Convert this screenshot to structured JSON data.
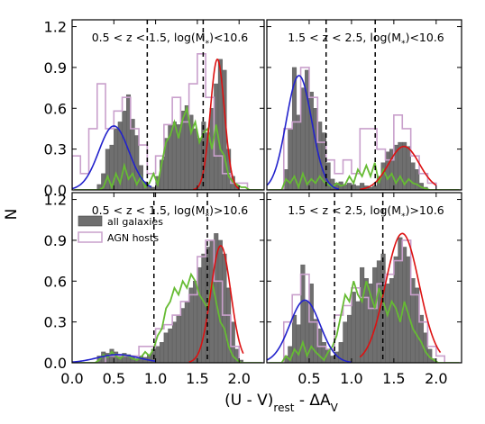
{
  "chart_data": {
    "type": "bar",
    "xlabel_main": "(U - V)",
    "xlabel_sub": "rest",
    "xlabel_tail": " - ΔA",
    "xlabel_tail_sub": "V",
    "ylabel": "N",
    "xlim": [
      0.0,
      2.3
    ],
    "ylim": [
      0.0,
      1.25
    ],
    "xticks": [
      "0.0",
      "0.5",
      "1.0",
      "1.5",
      "2.0"
    ],
    "yticks": [
      "0.0",
      "0.3",
      "0.6",
      "0.9",
      "1.2"
    ],
    "legend": {
      "placement": "upper-left of bottom-left panel",
      "entries": [
        "all galaxies",
        "AGN hosts"
      ]
    },
    "colors": {
      "hist_fill": "#6f6f6f",
      "agn": "#c9a0cc",
      "green": "#66bb33",
      "blue_fit": "#2222cc",
      "red_fit": "#dd1111"
    },
    "bin_start": 0.0,
    "bin_width": 0.05,
    "panels": [
      {
        "title": "0.5 < z < 1.5, log(M",
        "title_sub": "*",
        "title_tail": ")<10.6",
        "cuts": [
          0.9,
          1.57
        ],
        "all_galaxies": [
          0,
          0,
          0,
          0,
          0,
          0,
          0.04,
          0.12,
          0.3,
          0.33,
          0.45,
          0.5,
          0.58,
          0.7,
          0.52,
          0.4,
          0.18,
          0.06,
          0.03,
          0.02,
          0.1,
          0.22,
          0.38,
          0.48,
          0.5,
          0.48,
          0.58,
          0.62,
          0.55,
          0.45,
          0.38,
          0.5,
          0.42,
          0.6,
          0.78,
          0.96,
          0.88,
          0.3,
          0.1,
          0.03,
          0,
          0,
          0,
          0,
          0,
          0
        ],
        "agn_hosts": [
          0.25,
          0.25,
          0.12,
          0.12,
          0.45,
          0.45,
          0.78,
          0.78,
          0.45,
          0.45,
          0.58,
          0.58,
          0.68,
          0.68,
          0.45,
          0.45,
          0.33,
          0.33,
          0.12,
          0.12,
          0.25,
          0.25,
          0.48,
          0.48,
          0.68,
          0.68,
          0.5,
          0.5,
          0.78,
          0.78,
          1.0,
          1.0,
          0.68,
          0.68,
          0.25,
          0.25,
          0.12,
          0.12,
          0.05,
          0.05,
          0.05,
          0.05,
          0,
          0,
          0,
          0
        ],
        "green_line": [
          0,
          0,
          0,
          0,
          0,
          0,
          0,
          0.02,
          0.1,
          0.02,
          0.12,
          0.05,
          0.18,
          0.08,
          0.12,
          0.04,
          0.1,
          0.02,
          0.05,
          0.12,
          0.04,
          0.2,
          0.35,
          0.4,
          0.5,
          0.38,
          0.52,
          0.6,
          0.42,
          0.5,
          0.35,
          0.42,
          0.45,
          0.3,
          0.48,
          0.3,
          0.25,
          0.1,
          0.06,
          0.04,
          0.02,
          0.02,
          0,
          0,
          0,
          0
        ],
        "blue_fit": {
          "mu": 0.5,
          "sigma": 0.18,
          "amp": 0.47,
          "range": [
            0.0,
            0.95
          ]
        },
        "red_fit": {
          "mu": 1.74,
          "sigma": 0.085,
          "amp": 0.96,
          "range": [
            1.45,
            2.0
          ]
        }
      },
      {
        "title": "1.5 < z < 2.5, log(M",
        "title_sub": "*",
        "title_tail": ")<10.6",
        "cuts": [
          0.7,
          1.28
        ],
        "all_galaxies": [
          0,
          0,
          0,
          0,
          0.15,
          0.45,
          0.9,
          0.55,
          0.75,
          0.88,
          0.72,
          0.6,
          0.5,
          0.42,
          0.2,
          0.08,
          0.05,
          0.06,
          0.04,
          0.05,
          0.04,
          0.03,
          0.05,
          0.03,
          0.02,
          0.03,
          0.1,
          0.2,
          0.28,
          0.3,
          0.33,
          0.35,
          0.35,
          0.32,
          0.2,
          0.15,
          0.05,
          0.02,
          0,
          0,
          0,
          0,
          0,
          0,
          0,
          0
        ],
        "agn_hosts": [
          0,
          0,
          0,
          0,
          0.45,
          0.45,
          0.5,
          0.5,
          0.9,
          0.9,
          0.68,
          0.68,
          0.35,
          0.35,
          0.22,
          0.22,
          0.12,
          0.12,
          0.22,
          0.22,
          0.12,
          0.12,
          0.45,
          0.45,
          0.45,
          0.45,
          0.3,
          0.3,
          0.22,
          0.22,
          0.55,
          0.55,
          0.45,
          0.45,
          0.25,
          0.25,
          0.12,
          0.12,
          0.05,
          0.05,
          0,
          0,
          0,
          0,
          0,
          0
        ],
        "green_line": [
          0,
          0,
          0,
          0,
          0.08,
          0.05,
          0.1,
          0.02,
          0.12,
          0.04,
          0.08,
          0.05,
          0.1,
          0.06,
          0.04,
          0.02,
          0.05,
          0.03,
          0.04,
          0.1,
          0.05,
          0.15,
          0.1,
          0.18,
          0.1,
          0.2,
          0.05,
          0.15,
          0.08,
          0.12,
          0.05,
          0.1,
          0.04,
          0.08,
          0.05,
          0.04,
          0.02,
          0.01,
          0,
          0,
          0,
          0,
          0,
          0,
          0,
          0
        ],
        "blue_fit": {
          "mu": 0.38,
          "sigma": 0.15,
          "amp": 0.84,
          "range": [
            0.0,
            0.85
          ]
        },
        "red_fit": {
          "mu": 1.62,
          "sigma": 0.18,
          "amp": 0.32,
          "range": [
            1.1,
            2.0
          ]
        }
      },
      {
        "title": "0.5 < z < 1.5, log(M",
        "title_sub": "*",
        "title_tail": ")>10.6",
        "cuts": [
          0.98,
          1.62
        ],
        "all_galaxies": [
          0,
          0,
          0,
          0,
          0,
          0,
          0.05,
          0.08,
          0.07,
          0.1,
          0.08,
          0.06,
          0.07,
          0.06,
          0.04,
          0.03,
          0.05,
          0.04,
          0.06,
          0.1,
          0.12,
          0.15,
          0.22,
          0.25,
          0.3,
          0.35,
          0.4,
          0.45,
          0.55,
          0.6,
          0.7,
          0.8,
          0.85,
          0.9,
          0.95,
          0.9,
          0.8,
          0.55,
          0.3,
          0.1,
          0.02,
          0,
          0,
          0,
          0,
          0
        ],
        "agn_hosts": [
          0,
          0,
          0,
          0,
          0,
          0,
          0,
          0,
          0.05,
          0.05,
          0.05,
          0.05,
          0.05,
          0.05,
          0.05,
          0.05,
          0.12,
          0.12,
          0.12,
          0.12,
          0.25,
          0.25,
          0.28,
          0.28,
          0.35,
          0.35,
          0.45,
          0.45,
          0.5,
          0.5,
          0.78,
          0.78,
          0.9,
          0.9,
          0.6,
          0.6,
          0.35,
          0.35,
          0.12,
          0.12,
          0,
          0,
          0,
          0,
          0,
          0
        ],
        "green_line": [
          0,
          0,
          0,
          0,
          0,
          0,
          0.02,
          0.06,
          0.04,
          0.08,
          0.05,
          0.03,
          0.06,
          0.05,
          0.03,
          0.02,
          0.04,
          0.08,
          0.05,
          0.1,
          0.2,
          0.25,
          0.4,
          0.45,
          0.55,
          0.5,
          0.6,
          0.55,
          0.65,
          0.6,
          0.5,
          0.45,
          0.4,
          0.6,
          0.45,
          0.3,
          0.25,
          0.12,
          0.05,
          0.02,
          0,
          0,
          0,
          0,
          0,
          0
        ],
        "blue_fit": {
          "mu": 0.55,
          "sigma": 0.25,
          "amp": 0.06,
          "range": [
            0.0,
            1.0
          ]
        },
        "red_fit": {
          "mu": 1.78,
          "sigma": 0.12,
          "amp": 0.86,
          "range": [
            1.4,
            2.05
          ]
        }
      },
      {
        "title": "1.5 < z < 2.5, log(M",
        "title_sub": "*",
        "title_tail": ")>10.6",
        "cuts": [
          0.8,
          1.37
        ],
        "all_galaxies": [
          0,
          0,
          0,
          0,
          0.05,
          0.12,
          0.35,
          0.28,
          0.72,
          0.45,
          0.58,
          0.32,
          0.25,
          0.15,
          0.1,
          0.05,
          0.08,
          0.15,
          0.3,
          0.35,
          0.52,
          0.45,
          0.7,
          0.62,
          0.58,
          0.7,
          0.75,
          0.8,
          0.58,
          0.62,
          0.78,
          0.92,
          0.85,
          0.78,
          0.62,
          0.55,
          0.35,
          0.22,
          0.1,
          0.03,
          0,
          0,
          0,
          0,
          0,
          0
        ],
        "agn_hosts": [
          0,
          0,
          0,
          0,
          0.3,
          0.3,
          0.5,
          0.5,
          0.65,
          0.65,
          0.3,
          0.3,
          0.12,
          0.12,
          0.1,
          0.1,
          0.35,
          0.35,
          0.42,
          0.42,
          0.55,
          0.55,
          0.48,
          0.48,
          0.4,
          0.4,
          0.58,
          0.58,
          0.65,
          0.65,
          0.75,
          0.75,
          0.9,
          0.9,
          0.5,
          0.5,
          0.3,
          0.3,
          0.12,
          0.12,
          0.05,
          0.05,
          0,
          0,
          0,
          0
        ],
        "green_line": [
          0,
          0,
          0,
          0,
          0.05,
          0.02,
          0.1,
          0.06,
          0.15,
          0.05,
          0.12,
          0.08,
          0.05,
          0.02,
          0.08,
          0.12,
          0.2,
          0.35,
          0.5,
          0.45,
          0.6,
          0.5,
          0.45,
          0.6,
          0.5,
          0.4,
          0.55,
          0.45,
          0.35,
          0.45,
          0.4,
          0.3,
          0.45,
          0.35,
          0.25,
          0.2,
          0.15,
          0.08,
          0.04,
          0.02,
          0,
          0,
          0,
          0,
          0,
          0
        ],
        "blue_fit": {
          "mu": 0.45,
          "sigma": 0.18,
          "amp": 0.46,
          "range": [
            0.0,
            1.0
          ]
        },
        "red_fit": {
          "mu": 1.6,
          "sigma": 0.2,
          "amp": 0.95,
          "range": [
            1.1,
            2.05
          ]
        }
      }
    ]
  }
}
